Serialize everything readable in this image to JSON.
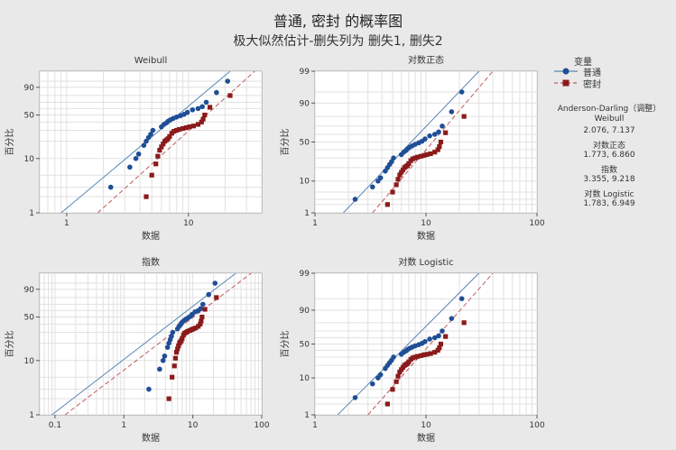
{
  "title": "普通, 密封 的概率图",
  "subtitle": "极大似然估计-删失列为 删失1, 删失2",
  "legend": {
    "title": "变量",
    "items": [
      {
        "label": "普通",
        "color": "#1f4e96",
        "marker": "circle",
        "line": "solid",
        "line_color": "#5a86b5"
      },
      {
        "label": "密封",
        "color": "#8b1a1a",
        "marker": "square",
        "line": "dashed",
        "line_color": "#c05a5a"
      }
    ]
  },
  "anderson_darling": {
    "title": "Anderson-Darling（调整）",
    "rows": [
      {
        "name": "Weibull",
        "values": "2.076, 7.137"
      },
      {
        "name": "对数正态",
        "values": "1.773, 6.860"
      },
      {
        "name": "指数",
        "values": "3.355, 9.218"
      },
      {
        "name": "对数 Logistic",
        "values": "1.783, 6.949"
      }
    ]
  },
  "chart_data": [
    {
      "type": "scatter",
      "title": "Weibull",
      "xlabel": "数据",
      "ylabel": "百分比",
      "x_scale": "log",
      "x_ticks": [
        1,
        10
      ],
      "xlim": [
        0.6,
        40
      ],
      "y_scale": "weibull",
      "y_ticks": [
        1,
        10,
        50,
        90
      ],
      "ylim": [
        1,
        99
      ],
      "grid": true,
      "series": [
        {
          "name": "普通",
          "x": [
            2.3,
            3.3,
            3.7,
            3.9,
            4.3,
            4.5,
            4.7,
            4.9,
            5.1,
            6.0,
            6.3,
            6.6,
            6.8,
            7.1,
            7.5,
            8.0,
            8.6,
            9.2,
            9.8,
            10.8,
            12.0,
            13.0,
            14.0,
            17.0,
            21.0
          ],
          "y": [
            3,
            7,
            10,
            12,
            17,
            20,
            23,
            26,
            30,
            34,
            37,
            39,
            41,
            43,
            45,
            47,
            49,
            51,
            54,
            58,
            60,
            63,
            70,
            84,
            95
          ]
        },
        {
          "name": "密封",
          "x": [
            4.5,
            5.0,
            5.4,
            5.6,
            5.8,
            6.0,
            6.2,
            6.4,
            6.6,
            6.8,
            7.0,
            7.3,
            7.6,
            8.0,
            8.4,
            9.0,
            9.6,
            10.2,
            11.0,
            12.0,
            12.8,
            13.2,
            13.6,
            15.0,
            22.0
          ],
          "y": [
            2,
            5,
            8,
            11,
            14,
            16,
            18,
            20,
            21,
            22,
            24,
            27,
            29,
            30,
            31,
            32,
            33,
            34,
            35,
            37,
            40,
            44,
            50,
            62,
            80
          ]
        }
      ],
      "fit": [
        {
          "name": "普通",
          "x": [
            0.9,
            22
          ],
          "y": [
            1,
            99
          ]
        },
        {
          "name": "密封",
          "x": [
            1.8,
            35
          ],
          "y": [
            1,
            99
          ]
        }
      ]
    },
    {
      "type": "scatter",
      "title": "对数正态",
      "xlabel": "数据",
      "ylabel": "百分比",
      "x_scale": "log",
      "x_ticks": [
        1,
        10,
        100
      ],
      "xlim": [
        1,
        100
      ],
      "y_scale": "normal",
      "y_ticks": [
        1,
        10,
        50,
        90,
        99
      ],
      "ylim": [
        1,
        99
      ],
      "grid": true,
      "series": [
        {
          "name": "普通",
          "x": [
            2.3,
            3.3,
            3.7,
            3.9,
            4.3,
            4.5,
            4.7,
            4.9,
            5.1,
            6.0,
            6.3,
            6.6,
            6.8,
            7.1,
            7.5,
            8.0,
            8.6,
            9.2,
            9.8,
            10.8,
            12.0,
            13.0,
            14.0,
            17.0,
            21.0
          ],
          "y": [
            3,
            7,
            10,
            12,
            17,
            20,
            23,
            26,
            30,
            34,
            37,
            39,
            41,
            43,
            45,
            47,
            49,
            51,
            54,
            58,
            60,
            63,
            70,
            84,
            95
          ]
        },
        {
          "name": "密封",
          "x": [
            4.5,
            5.0,
            5.4,
            5.6,
            5.8,
            6.0,
            6.2,
            6.4,
            6.6,
            6.8,
            7.0,
            7.3,
            7.6,
            8.0,
            8.4,
            9.0,
            9.6,
            10.2,
            11.0,
            12.0,
            12.8,
            13.2,
            13.6,
            15.0,
            22.0
          ],
          "y": [
            2,
            5,
            8,
            11,
            14,
            16,
            18,
            20,
            21,
            22,
            24,
            27,
            29,
            30,
            31,
            32,
            33,
            34,
            35,
            37,
            40,
            44,
            50,
            62,
            80
          ]
        }
      ],
      "fit": [
        {
          "name": "普通",
          "x": [
            1.8,
            30
          ],
          "y": [
            1,
            99
          ]
        },
        {
          "name": "密封",
          "x": [
            3.3,
            40
          ],
          "y": [
            1,
            99
          ]
        }
      ]
    },
    {
      "type": "scatter",
      "title": "指数",
      "xlabel": "数据",
      "ylabel": "百分比",
      "x_scale": "log",
      "x_ticks": [
        0.1,
        1,
        10,
        100
      ],
      "xlim": [
        0.06,
        100
      ],
      "y_scale": "weibull",
      "y_ticks": [
        1,
        10,
        50,
        90
      ],
      "ylim": [
        1,
        99
      ],
      "grid": true,
      "series": [
        {
          "name": "普通",
          "x": [
            2.3,
            3.3,
            3.7,
            3.9,
            4.3,
            4.5,
            4.7,
            4.9,
            5.1,
            6.0,
            6.3,
            6.6,
            6.8,
            7.1,
            7.5,
            8.0,
            8.6,
            9.2,
            9.8,
            10.8,
            12.0,
            13.0,
            14.0,
            17.0,
            21.0
          ],
          "y": [
            3,
            7,
            10,
            12,
            17,
            20,
            23,
            26,
            30,
            34,
            37,
            39,
            41,
            43,
            45,
            47,
            49,
            51,
            54,
            58,
            60,
            63,
            70,
            84,
            95
          ]
        },
        {
          "name": "密封",
          "x": [
            4.5,
            5.0,
            5.4,
            5.6,
            5.8,
            6.0,
            6.2,
            6.4,
            6.6,
            6.8,
            7.0,
            7.3,
            7.6,
            8.0,
            8.4,
            9.0,
            9.6,
            10.2,
            11.0,
            12.0,
            12.8,
            13.2,
            13.6,
            15.0,
            22.0
          ],
          "y": [
            2,
            5,
            8,
            11,
            14,
            16,
            18,
            20,
            21,
            22,
            24,
            27,
            29,
            30,
            31,
            32,
            33,
            34,
            35,
            37,
            40,
            44,
            50,
            62,
            80
          ]
        }
      ],
      "fit": [
        {
          "name": "普通",
          "x": [
            0.09,
            42
          ],
          "y": [
            1,
            99
          ]
        },
        {
          "name": "密封",
          "x": [
            0.14,
            70
          ],
          "y": [
            1,
            99
          ]
        }
      ]
    },
    {
      "type": "scatter",
      "title": "对数 Logistic",
      "xlabel": "数据",
      "ylabel": "百分比",
      "x_scale": "log",
      "x_ticks": [
        1,
        10,
        100
      ],
      "xlim": [
        1,
        100
      ],
      "y_scale": "logistic",
      "y_ticks": [
        1,
        10,
        50,
        90,
        99
      ],
      "ylim": [
        1,
        99
      ],
      "grid": true,
      "series": [
        {
          "name": "普通",
          "x": [
            2.3,
            3.3,
            3.7,
            3.9,
            4.3,
            4.5,
            4.7,
            4.9,
            5.1,
            6.0,
            6.3,
            6.6,
            6.8,
            7.1,
            7.5,
            8.0,
            8.6,
            9.2,
            9.8,
            10.8,
            12.0,
            13.0,
            14.0,
            17.0,
            21.0
          ],
          "y": [
            3,
            7,
            10,
            12,
            17,
            20,
            23,
            26,
            30,
            34,
            37,
            39,
            41,
            43,
            45,
            47,
            49,
            51,
            54,
            58,
            60,
            63,
            70,
            84,
            95
          ]
        },
        {
          "name": "密封",
          "x": [
            4.5,
            5.0,
            5.4,
            5.6,
            5.8,
            6.0,
            6.2,
            6.4,
            6.6,
            6.8,
            7.0,
            7.3,
            7.6,
            8.0,
            8.4,
            9.0,
            9.6,
            10.2,
            11.0,
            12.0,
            12.8,
            13.2,
            13.6,
            15.0,
            22.0
          ],
          "y": [
            2,
            5,
            8,
            11,
            14,
            16,
            18,
            20,
            21,
            22,
            24,
            27,
            29,
            30,
            31,
            32,
            33,
            34,
            35,
            37,
            40,
            44,
            50,
            62,
            80
          ]
        }
      ],
      "fit": [
        {
          "name": "普通",
          "x": [
            1.6,
            30
          ],
          "y": [
            1,
            99
          ]
        },
        {
          "name": "密封",
          "x": [
            3.0,
            40
          ],
          "y": [
            1,
            99
          ]
        }
      ]
    }
  ]
}
